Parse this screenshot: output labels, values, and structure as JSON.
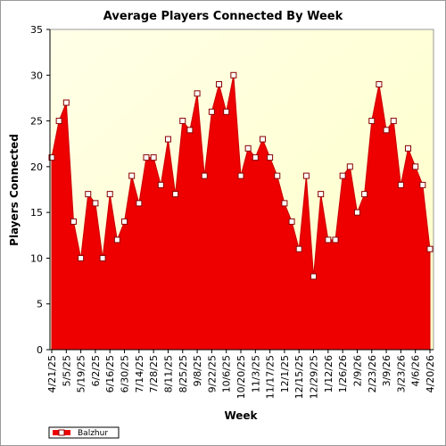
{
  "chart_data": {
    "type": "area",
    "title": "Average Players Connected By Week",
    "xlabel": "Week",
    "ylabel": "Players Connected",
    "ylim": [
      0,
      35
    ],
    "yticks": [
      0,
      5,
      10,
      15,
      20,
      25,
      30,
      35
    ],
    "x_tick_labels": [
      "4/21/25",
      "5/5/25",
      "5/19/25",
      "6/2/25",
      "6/16/25",
      "6/30/25",
      "7/14/25",
      "7/28/25",
      "8/11/25",
      "8/25/25",
      "9/8/25",
      "9/22/25",
      "10/6/25",
      "10/20/25",
      "11/3/25",
      "11/17/25",
      "12/1/25",
      "12/15/25",
      "12/29/25",
      "1/12/26",
      "1/26/26",
      "2/9/26",
      "2/23/26",
      "3/9/26",
      "3/23/26",
      "4/6/26",
      "4/20/26"
    ],
    "x": [
      "4/21/25",
      "4/28/25",
      "5/5/25",
      "5/12/25",
      "5/19/25",
      "5/26/25",
      "6/2/25",
      "6/9/25",
      "6/16/25",
      "6/23/25",
      "6/30/25",
      "7/7/25",
      "7/14/25",
      "7/21/25",
      "7/28/25",
      "8/4/25",
      "8/11/25",
      "8/18/25",
      "8/25/25",
      "9/1/25",
      "9/8/25",
      "9/15/25",
      "9/22/25",
      "9/29/25",
      "10/6/25",
      "10/13/25",
      "10/20/25",
      "10/27/25",
      "11/3/25",
      "11/10/25",
      "11/17/25",
      "11/24/25",
      "12/1/25",
      "12/8/25",
      "12/15/25",
      "12/22/25",
      "12/29/25",
      "1/5/26",
      "1/12/26",
      "1/19/26",
      "1/26/26",
      "2/2/26",
      "2/9/26",
      "2/16/26",
      "2/23/26",
      "3/2/26",
      "3/9/26",
      "3/16/26",
      "3/23/26",
      "3/30/26",
      "4/6/26",
      "4/13/26",
      "4/20/26"
    ],
    "series": [
      {
        "name": "Balzhur",
        "color": "#ee0000",
        "values": [
          21,
          25,
          27,
          14,
          10,
          17,
          16,
          10,
          17,
          12,
          14,
          19,
          16,
          21,
          21,
          18,
          23,
          17,
          25,
          24,
          28,
          19,
          26,
          29,
          26,
          30,
          19,
          22,
          21,
          23,
          21,
          19,
          16,
          14,
          11,
          19,
          8,
          17,
          12,
          12,
          19,
          20,
          15,
          17,
          25,
          29,
          24,
          25,
          18,
          22,
          20,
          18,
          11
        ]
      }
    ],
    "grid": false,
    "legend_position": "bottom-left",
    "plot_background": "#ffffe0"
  }
}
